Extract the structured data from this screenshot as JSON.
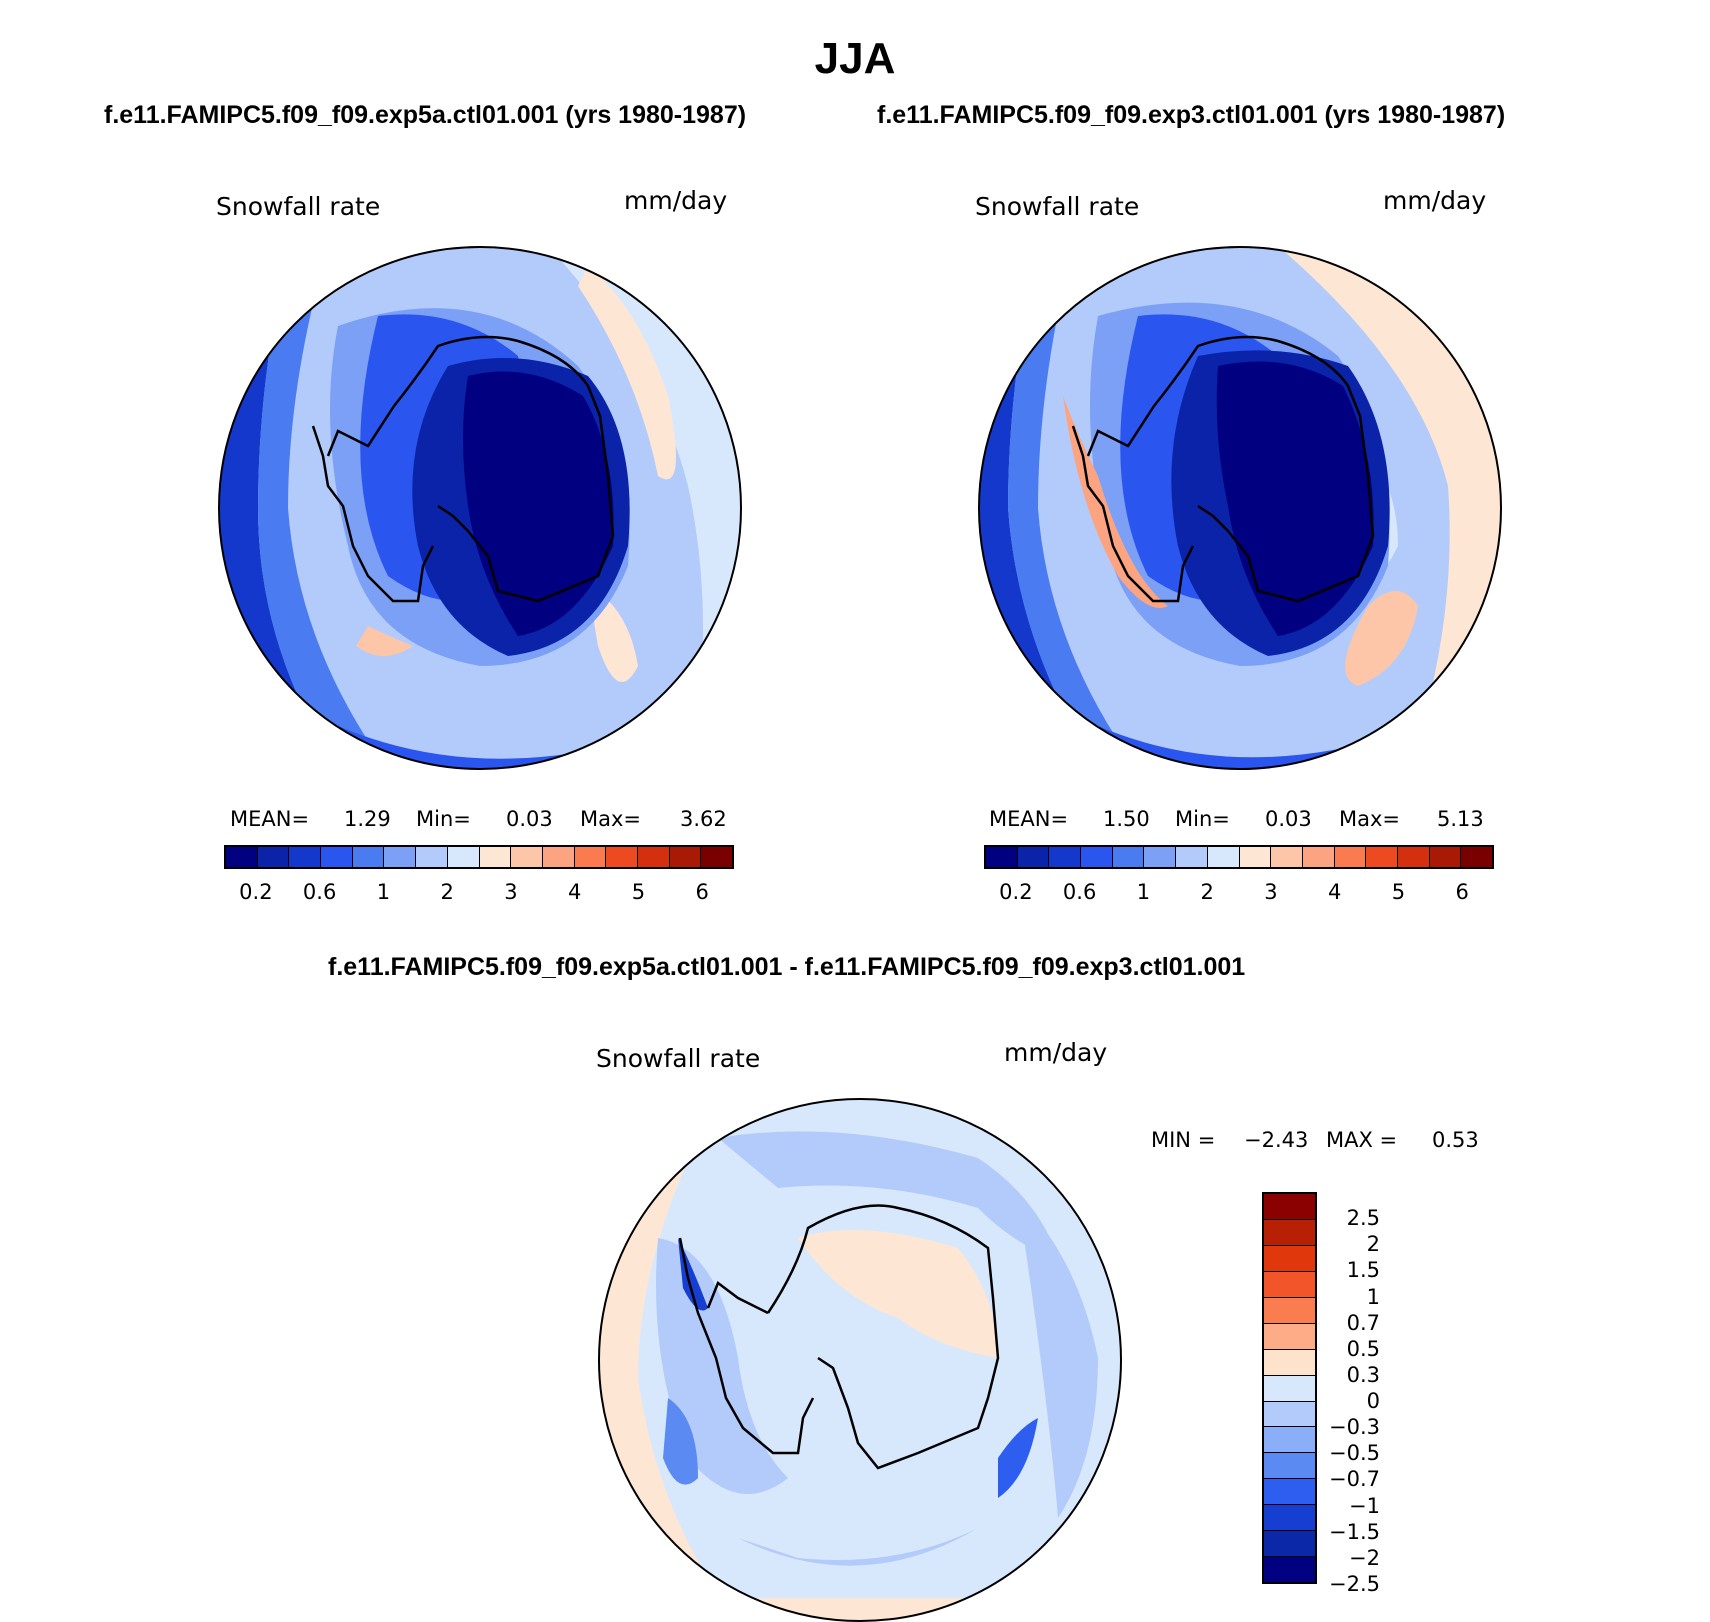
{
  "title": "JJA",
  "panels": [
    {
      "case_header": "f.e11.FAMIPC5.f09_f09.exp5a.ctl01.001 (yrs 1980-1987)",
      "variable": "Snowfall rate",
      "units": "mm/day",
      "mean_label": "MEAN=",
      "mean": "1.29",
      "min_label": "Min=",
      "min": "0.03",
      "max_label": "Max=",
      "max": "3.62"
    },
    {
      "case_header": "f.e11.FAMIPC5.f09_f09.exp3.ctl01.001 (yrs 1980-1987)",
      "variable": "Snowfall rate",
      "units": "mm/day",
      "mean_label": "MEAN=",
      "mean": "1.50",
      "min_label": "Min=",
      "min": "0.03",
      "max_label": "Max=",
      "max": "5.13"
    }
  ],
  "abs_colorbar": {
    "colors": [
      "#000080",
      "#0a23a8",
      "#1437cc",
      "#2a55ee",
      "#4a7bf0",
      "#7ba0f5",
      "#b3cbfa",
      "#d8e8fc",
      "#fde6d4",
      "#fdc6a8",
      "#fca482",
      "#fa7b50",
      "#ee4a22",
      "#d43010",
      "#a81a05",
      "#7a0000"
    ],
    "tick_labels": [
      "0.2",
      "0.6",
      "1",
      "2",
      "3",
      "4",
      "5",
      "6"
    ]
  },
  "diff": {
    "header": "f.e11.FAMIPC5.f09_f09.exp5a.ctl01.001 - f.e11.FAMIPC5.f09_f09.exp3.ctl01.001",
    "variable": "Snowfall rate",
    "units": "mm/day",
    "min_label": "MIN =",
    "min": "−2.43",
    "max_label": "MAX =",
    "max": "0.53",
    "colors_top_to_bottom": [
      "#8b0000",
      "#b82005",
      "#e0380c",
      "#f2552a",
      "#fa7d50",
      "#fdac88",
      "#fde3cc",
      "#d8e8fc",
      "#b3cbfa",
      "#8aaef7",
      "#5a8af2",
      "#2e5ef0",
      "#163ed0",
      "#0a28a8",
      "#000080"
    ],
    "tick_labels": [
      "2.5",
      "2",
      "1.5",
      "1",
      "0.7",
      "0.5",
      "0.3",
      "0",
      "−0.3",
      "−0.5",
      "−0.7",
      "−1",
      "−1.5",
      "−2",
      "−2.5"
    ]
  }
}
